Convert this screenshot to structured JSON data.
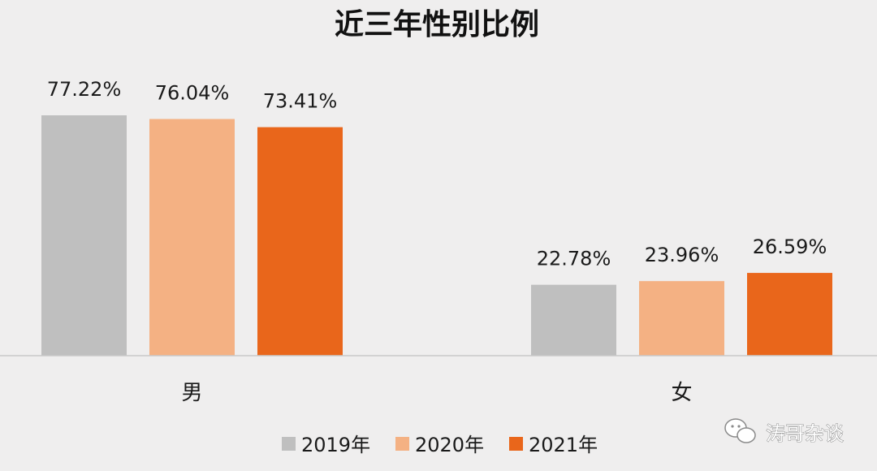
{
  "chart_data": {
    "type": "bar",
    "title": "近三年性别比例",
    "categories": [
      "男",
      "女"
    ],
    "series": [
      {
        "name": "2019年",
        "color": "#bfbfbf",
        "values": [
          77.22,
          22.78
        ],
        "labels": [
          "77.22%",
          "22.78%"
        ]
      },
      {
        "name": "2020年",
        "color": "#f4b183",
        "values": [
          76.04,
          23.96
        ],
        "labels": [
          "76.04%",
          "23.96%"
        ]
      },
      {
        "name": "2021年",
        "color": "#e9661b",
        "values": [
          73.41,
          26.59
        ],
        "labels": [
          "73.41%",
          "26.59%"
        ]
      }
    ],
    "ylim": [
      0,
      100
    ],
    "grid": false,
    "legend_position": "bottom"
  },
  "watermark": {
    "text": "涛哥杂谈",
    "icon": "wechat-icon"
  }
}
